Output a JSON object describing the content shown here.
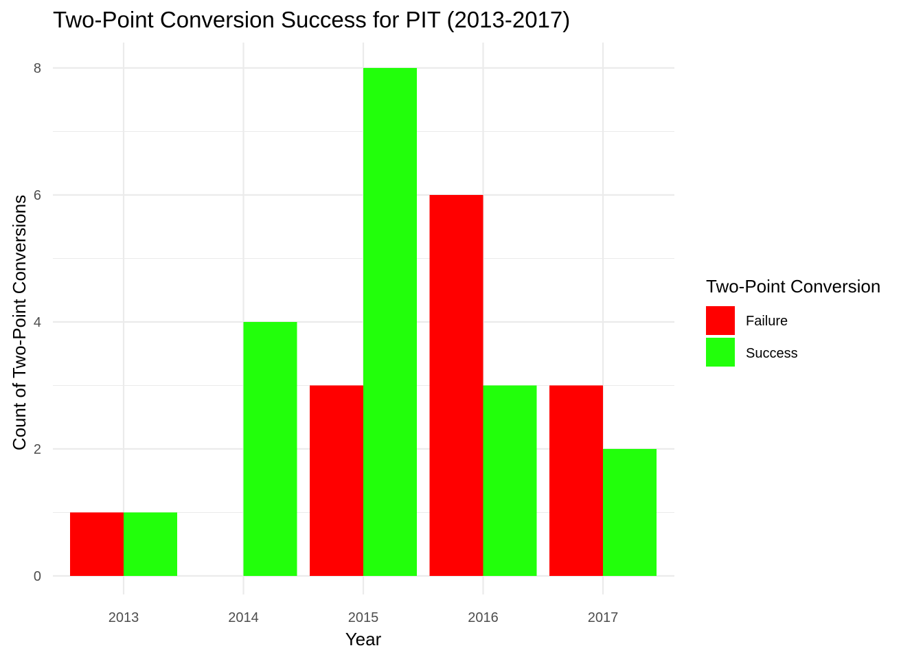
{
  "chart_data": {
    "type": "bar",
    "title": "Two-Point Conversion Success for PIT (2013-2017)",
    "xlabel": "Year",
    "ylabel": "Count of Two-Point Conversions",
    "categories": [
      "2013",
      "2014",
      "2015",
      "2016",
      "2017"
    ],
    "series": [
      {
        "name": "Failure",
        "color": "#ff0000",
        "values": [
          1,
          0,
          3,
          6,
          3
        ]
      },
      {
        "name": "Success",
        "color": "#22ff0b",
        "values": [
          1,
          4,
          8,
          3,
          2
        ]
      }
    ],
    "ylim": [
      0,
      8
    ],
    "yticks": [
      0,
      2,
      4,
      6,
      8
    ],
    "grid": true,
    "legend": {
      "title": "Two-Point Conversion",
      "position": "right"
    }
  }
}
